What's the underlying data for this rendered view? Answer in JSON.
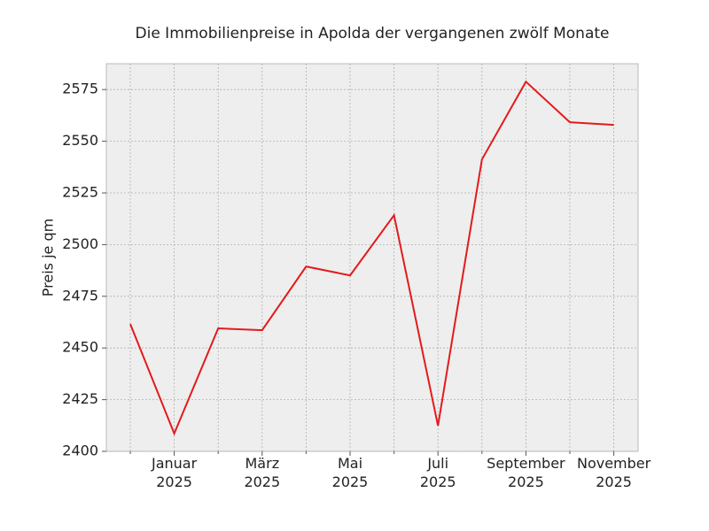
{
  "chart_data": {
    "type": "line",
    "title": "Die Immobilienpreise in Apolda der vergangenen zwölf Monate",
    "ylabel": "Preis je qm",
    "categories": [
      null,
      "Januar\n2025",
      null,
      "März\n2025",
      null,
      "Mai\n2025",
      null,
      "Juli\n2025",
      null,
      "September\n2025",
      null,
      "November\n2025"
    ],
    "series": [
      {
        "name": "Preis je qm",
        "color": "#e31a1c",
        "values": [
          2461.6,
          2408.6,
          2459.5,
          2458.6,
          2489.4,
          2485.1,
          2514.2,
          2412.4,
          2541.2,
          2578.8,
          2559.2,
          2557.9
        ]
      }
    ],
    "ylim": [
      2400,
      2587.5
    ],
    "yticks": [
      2400,
      2425,
      2450,
      2475,
      2500,
      2525,
      2550,
      2575
    ],
    "grid": true
  }
}
